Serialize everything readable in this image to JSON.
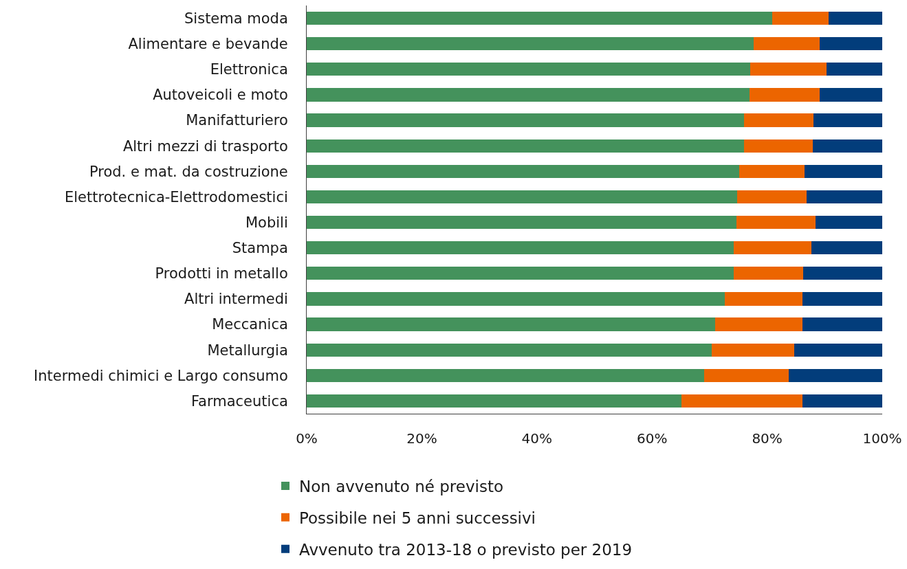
{
  "chart_data": {
    "type": "bar",
    "orientation": "horizontal",
    "stacked": true,
    "categories": [
      "Sistema moda",
      "Alimentare e bevande",
      "Elettronica",
      "Autoveicoli e moto",
      "Manifatturiero",
      "Altri mezzi di trasporto",
      "Prod. e mat. da costruzione",
      "Elettrotecnica-Elettrodomestici",
      "Mobili",
      "Stampa",
      "Prodotti in metallo",
      "Altri intermedi",
      "Meccanica",
      "Metallurgia",
      "Intermedi chimici e Largo consumo",
      "Farmaceutica"
    ],
    "series": [
      {
        "name": "Non avvenuto né previsto",
        "color": "#44925c",
        "values": [
          80.9,
          77.6,
          77.1,
          76.9,
          76.0,
          76.0,
          75.2,
          74.8,
          74.7,
          74.2,
          74.2,
          72.6,
          71.0,
          70.4,
          69.1,
          65.1
        ]
      },
      {
        "name": "Possibile nei 5 anni successivi",
        "color": "#ec6500",
        "values": [
          9.8,
          11.5,
          13.2,
          12.2,
          12.1,
          11.9,
          11.3,
          12.1,
          13.7,
          13.5,
          12.1,
          13.5,
          15.1,
          14.3,
          14.7,
          21.0
        ]
      },
      {
        "name": "Avvenuto tra 2013-18 o previsto per 2019",
        "color": "#023d7b",
        "values": [
          9.3,
          10.9,
          9.7,
          10.9,
          11.9,
          12.1,
          13.5,
          13.1,
          11.6,
          12.3,
          13.7,
          13.9,
          13.9,
          15.3,
          16.2,
          13.9
        ]
      }
    ],
    "xlim": [
      0,
      100
    ],
    "xticks": [
      {
        "value": 0,
        "label": "0%"
      },
      {
        "value": 20,
        "label": "20%"
      },
      {
        "value": 40,
        "label": "40%"
      },
      {
        "value": 60,
        "label": "60%"
      },
      {
        "value": 80,
        "label": "80%"
      },
      {
        "value": 100,
        "label": "100%"
      }
    ],
    "grid": false,
    "legend": "bottom"
  }
}
